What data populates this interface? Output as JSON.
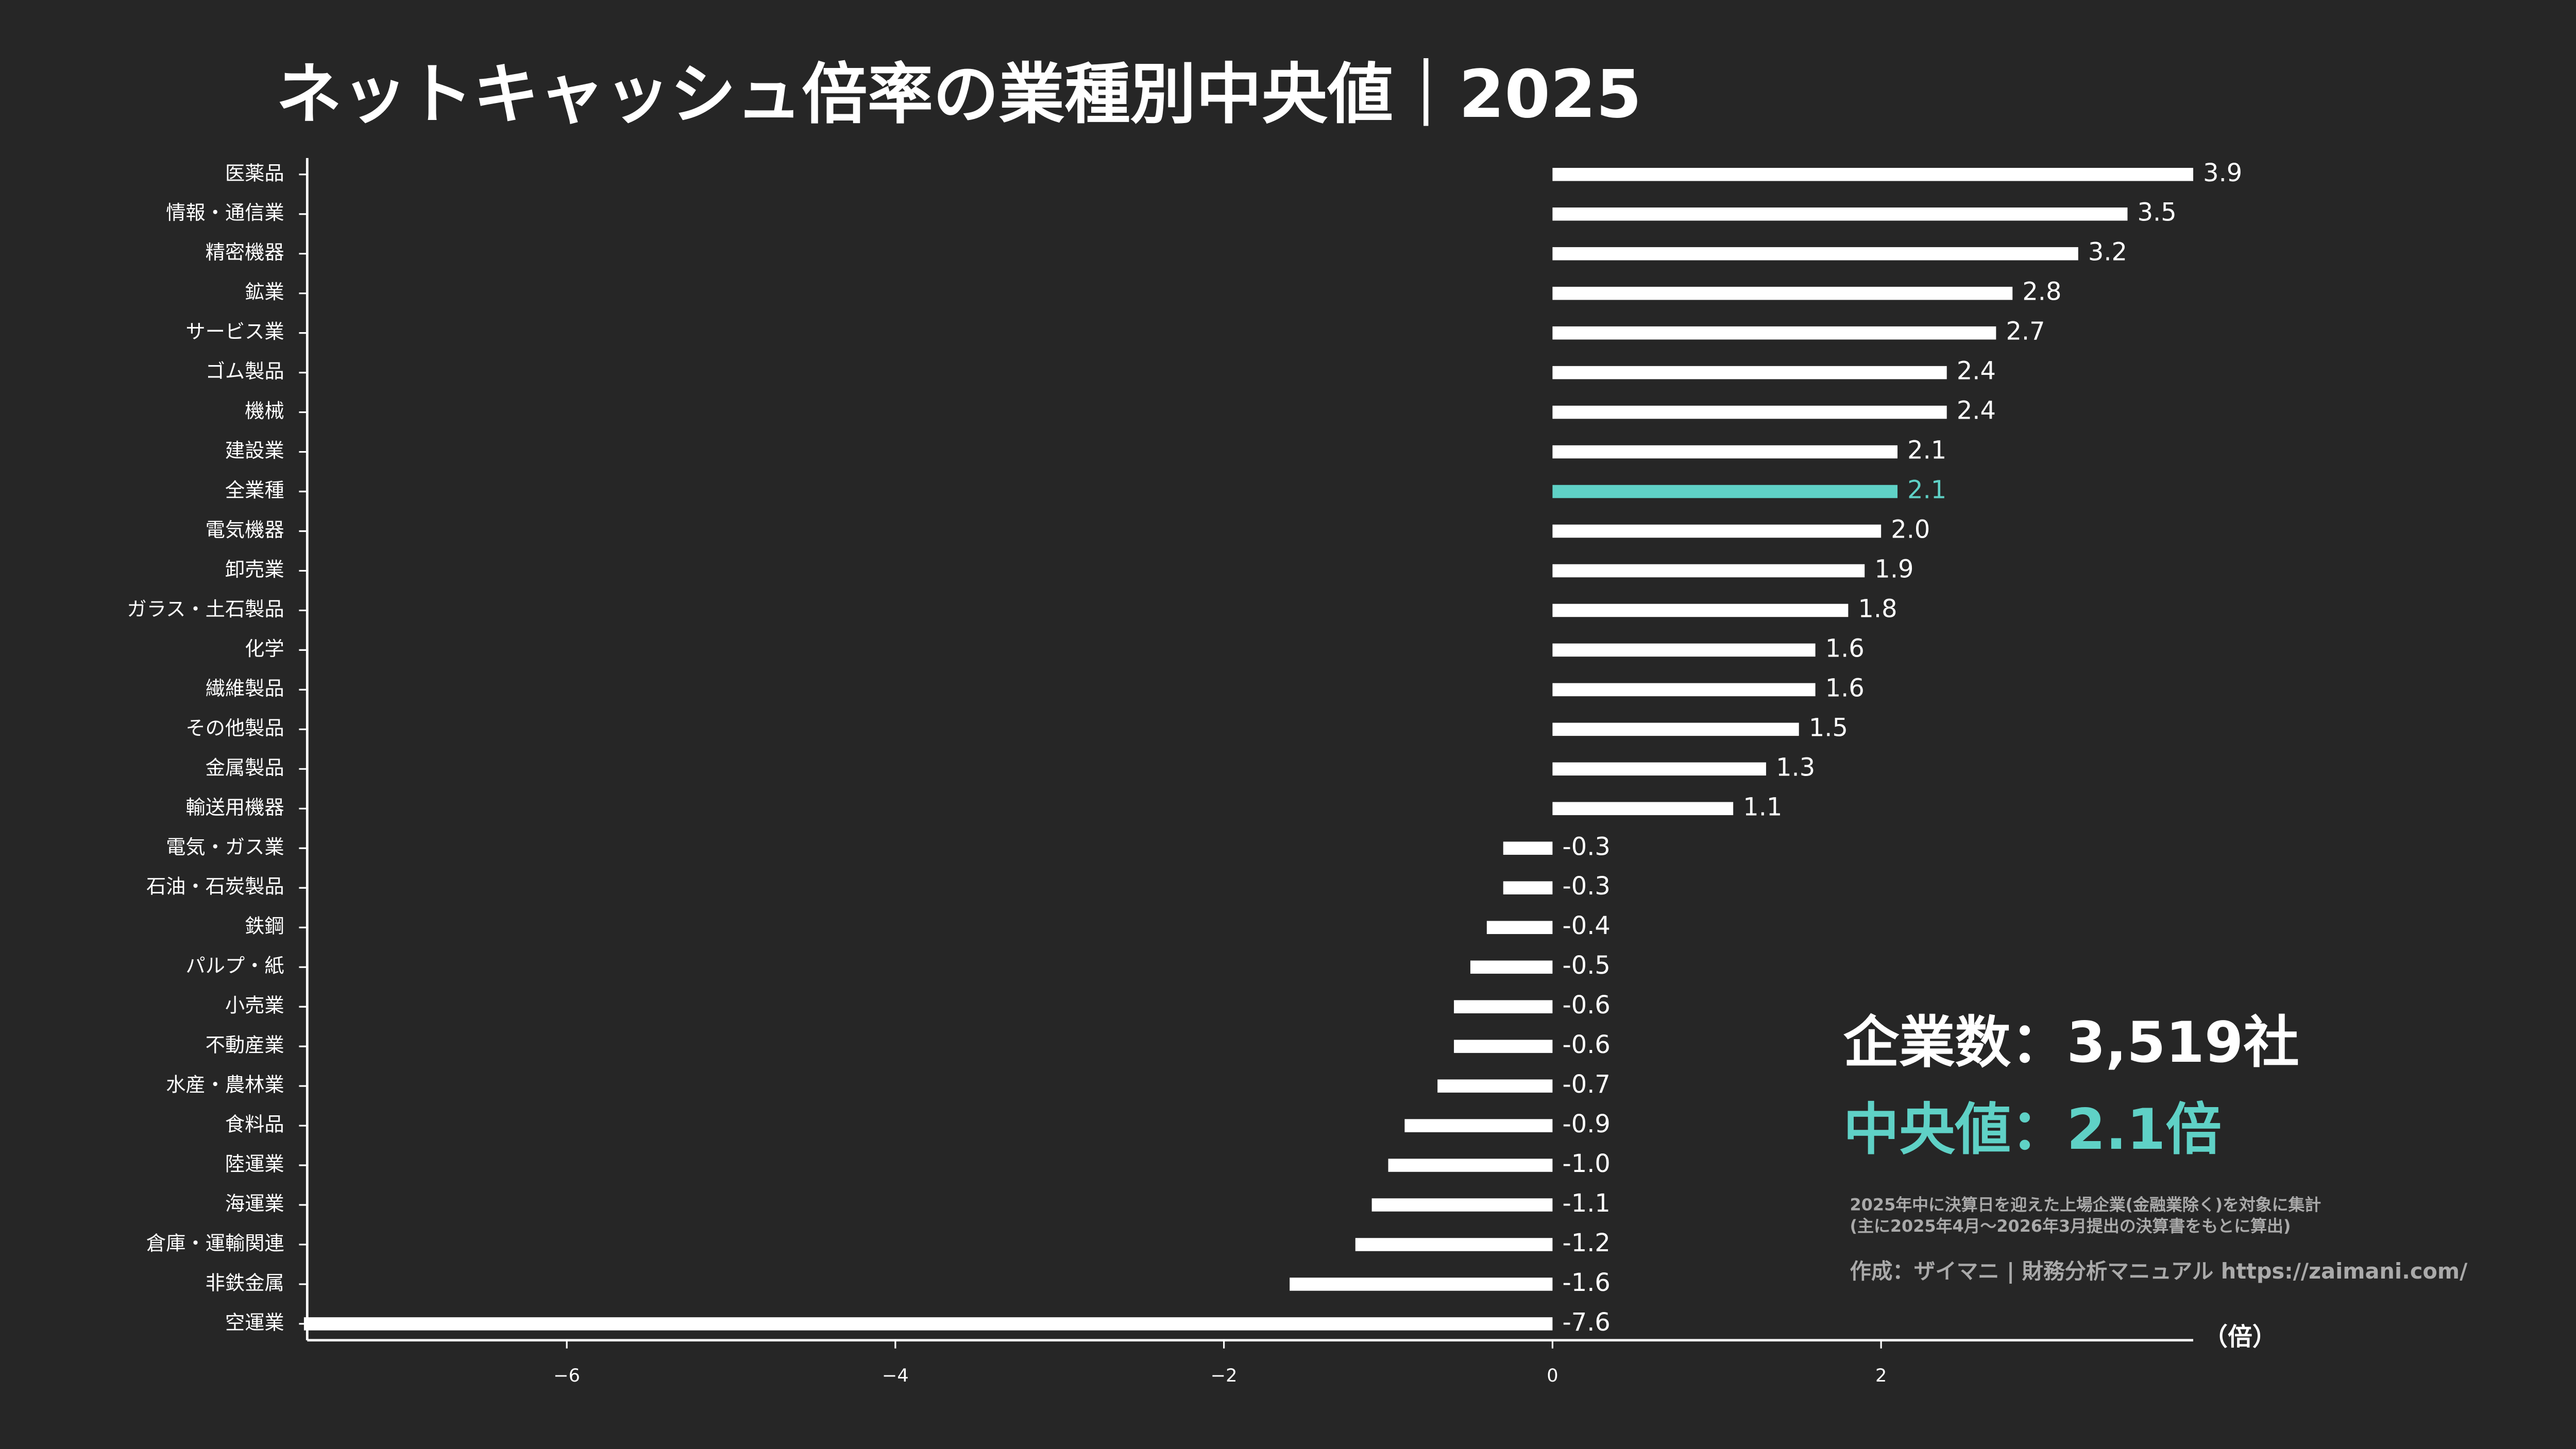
{
  "chart_data": {
    "type": "barh",
    "title": "ネットキャッシュ倍率の業種別中央値｜2025",
    "categories": [
      "医薬品",
      "情報・通信業",
      "精密機器",
      "鉱業",
      "サービス業",
      "ゴム製品",
      "機械",
      "建設業",
      "全業種",
      "電気機器",
      "卸売業",
      "ガラス・土石製品",
      "化学",
      "繊維製品",
      "その他製品",
      "金属製品",
      "輸送用機器",
      "電気・ガス業",
      "石油・石炭製品",
      "鉄鋼",
      "パルプ・紙",
      "小売業",
      "不動産業",
      "水産・農林業",
      "食料品",
      "陸運業",
      "海運業",
      "倉庫・運輸関連",
      "非鉄金属",
      "空運業"
    ],
    "values": [
      3.9,
      3.5,
      3.2,
      2.8,
      2.7,
      2.4,
      2.4,
      2.1,
      2.1,
      2.0,
      1.9,
      1.8,
      1.6,
      1.6,
      1.5,
      1.3,
      1.1,
      -0.3,
      -0.3,
      -0.4,
      -0.5,
      -0.6,
      -0.6,
      -0.7,
      -0.9,
      -1.0,
      -1.1,
      -1.2,
      -1.6,
      -7.6
    ],
    "value_labels": [
      "3.9",
      "3.5",
      "3.2",
      "2.8",
      "2.7",
      "2.4",
      "2.4",
      "2.1",
      "2.1",
      "2.0",
      "1.9",
      "1.8",
      "1.6",
      "1.6",
      "1.5",
      "1.3",
      "1.1",
      "-0.3",
      "-0.3",
      "-0.4",
      "-0.5",
      "-0.6",
      "-0.6",
      "-0.7",
      "-0.9",
      "-1.0",
      "-1.1",
      "-1.2",
      "-1.6",
      "-7.6"
    ],
    "colors": [
      "#ffffff",
      "#ffffff",
      "#ffffff",
      "#ffffff",
      "#ffffff",
      "#ffffff",
      "#ffffff",
      "#ffffff",
      "#5fd1c6",
      "#ffffff",
      "#ffffff",
      "#ffffff",
      "#ffffff",
      "#ffffff",
      "#ffffff",
      "#ffffff",
      "#ffffff",
      "#ffffff",
      "#ffffff",
      "#ffffff",
      "#ffffff",
      "#ffffff",
      "#ffffff",
      "#ffffff",
      "#ffffff",
      "#ffffff",
      "#ffffff",
      "#ffffff",
      "#ffffff",
      "#ffffff"
    ],
    "xlim": [
      -7.58,
      3.9
    ],
    "xticks": [
      {
        "value": -6,
        "label": "−6"
      },
      {
        "value": -4,
        "label": "−4"
      },
      {
        "value": -2,
        "label": "−2"
      },
      0,
      2
    ],
    "x_label": "（倍）",
    "annotations": [
      "企業数：3,519社",
      "中央値：2.1倍",
      "2025年中に決算日を迎えた上場企業(金融業除く)を対象に集計",
      "(主に2025年4月〜2026年3月提出の決算書をもとに算出)",
      "作成：ザイマニ | 財務分析マニュアル https://zaimani.com/"
    ]
  }
}
